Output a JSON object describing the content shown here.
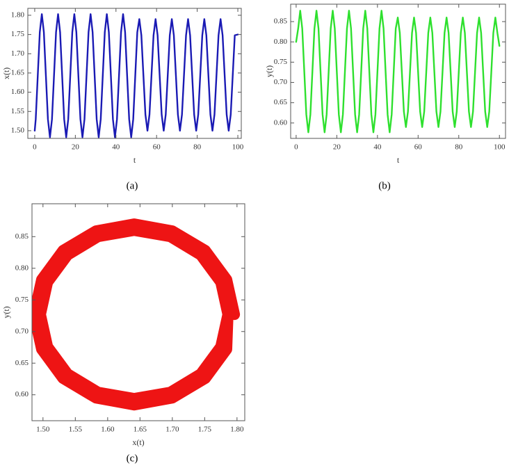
{
  "chart_data": [
    {
      "type": "line",
      "caption": "(a)",
      "x_label": "t",
      "y_label": "x(t)",
      "color": "#1a1ab4",
      "x": [
        0,
        0.5,
        1.5,
        2.5,
        3.5,
        4.5,
        5.5,
        6.5,
        7.5,
        8.5,
        9.5,
        10.5,
        11.5,
        12.5,
        13.5,
        14.5,
        15.5,
        16.5,
        17.5,
        18.5,
        19.5,
        20.5,
        21.5,
        22.5,
        23.5,
        24.5,
        25.5,
        26.5,
        27.5,
        28.5,
        29.5,
        30.5,
        31.5,
        32.5,
        33.5,
        34.5,
        35.5,
        36.5,
        37.5,
        38.5,
        39.5,
        40.5,
        41.5,
        42.5,
        43.5,
        44.5,
        45.5,
        46.5,
        47.5,
        48.5,
        49.5,
        50.5,
        51.5,
        52.5,
        53.5,
        54.5,
        55.5,
        56.5,
        57.5,
        58.5,
        59.5,
        60.5,
        61.5,
        62.5,
        63.5,
        64.5,
        65.5,
        66.5,
        67.5,
        68.5,
        69.5,
        70.5,
        71.5,
        72.5,
        73.5,
        74.5,
        75.5,
        76.5,
        77.5,
        78.5,
        79.5,
        80.5,
        81.5,
        82.5,
        83.5,
        84.5,
        85.5,
        86.5,
        87.5,
        88.5,
        89.5,
        90.5,
        91.5,
        92.5,
        93.5,
        94.5,
        95.5,
        96.5,
        97.5,
        98.5,
        100
      ],
      "values": [
        1.5,
        1.53,
        1.643,
        1.756,
        1.803,
        1.756,
        1.643,
        1.53,
        1.483,
        1.53,
        1.643,
        1.756,
        1.803,
        1.756,
        1.643,
        1.53,
        1.483,
        1.53,
        1.643,
        1.756,
        1.803,
        1.756,
        1.643,
        1.53,
        1.483,
        1.53,
        1.643,
        1.756,
        1.803,
        1.756,
        1.643,
        1.53,
        1.483,
        1.53,
        1.643,
        1.756,
        1.803,
        1.756,
        1.643,
        1.53,
        1.483,
        1.53,
        1.643,
        1.756,
        1.803,
        1.756,
        1.643,
        1.53,
        1.483,
        1.53,
        1.643,
        1.756,
        1.79,
        1.748,
        1.645,
        1.542,
        1.5,
        1.542,
        1.645,
        1.748,
        1.79,
        1.748,
        1.645,
        1.542,
        1.5,
        1.542,
        1.645,
        1.748,
        1.79,
        1.748,
        1.645,
        1.542,
        1.5,
        1.542,
        1.645,
        1.748,
        1.79,
        1.748,
        1.645,
        1.542,
        1.5,
        1.542,
        1.645,
        1.748,
        1.79,
        1.748,
        1.645,
        1.542,
        1.5,
        1.542,
        1.645,
        1.748,
        1.79,
        1.748,
        1.645,
        1.542,
        1.5,
        1.542,
        1.645,
        1.748,
        1.75
      ],
      "xlim": [
        -3.4,
        101.7
      ],
      "xticks": [
        0,
        20,
        40,
        60,
        80,
        100
      ],
      "ylim": [
        1.48,
        1.818
      ],
      "yticks": [
        {
          "value": 1.5,
          "label": "1.50"
        },
        {
          "value": 1.55,
          "label": "1.55"
        },
        {
          "value": 1.6,
          "label": "1.60"
        },
        {
          "value": 1.65,
          "label": "1.65"
        },
        {
          "value": 1.7,
          "label": "1.70"
        },
        {
          "value": 1.75,
          "label": "1.75"
        },
        {
          "value": 1.8,
          "label": "1.80"
        }
      ]
    },
    {
      "type": "line",
      "caption": "(b)",
      "x_label": "t",
      "y_label": "y(t)",
      "color": "#2ee02e",
      "x": [
        0,
        1,
        2,
        3,
        4,
        5,
        6,
        7,
        8,
        9,
        10,
        11,
        12,
        13,
        14,
        15,
        16,
        17,
        18,
        19,
        20,
        21,
        22,
        23,
        24,
        25,
        26,
        27,
        28,
        29,
        30,
        31,
        32,
        33,
        34,
        35,
        36,
        37,
        38,
        39,
        40,
        41,
        42,
        43,
        44,
        45,
        46,
        47,
        48,
        49,
        50,
        51,
        52,
        53,
        54,
        55,
        56,
        57,
        58,
        59,
        60,
        61,
        62,
        63,
        64,
        65,
        66,
        67,
        68,
        69,
        70,
        71,
        72,
        73,
        74,
        75,
        76,
        77,
        78,
        79,
        80,
        81,
        82,
        83,
        84,
        85,
        86,
        87,
        88,
        89,
        90,
        91,
        92,
        93,
        94,
        95,
        96,
        97,
        98,
        99,
        100
      ],
      "values": [
        0.8,
        0.833,
        0.877,
        0.833,
        0.727,
        0.621,
        0.577,
        0.621,
        0.727,
        0.833,
        0.877,
        0.833,
        0.727,
        0.621,
        0.577,
        0.621,
        0.727,
        0.833,
        0.877,
        0.833,
        0.727,
        0.621,
        0.577,
        0.621,
        0.727,
        0.833,
        0.877,
        0.833,
        0.727,
        0.621,
        0.577,
        0.621,
        0.727,
        0.833,
        0.877,
        0.833,
        0.727,
        0.621,
        0.577,
        0.621,
        0.727,
        0.833,
        0.877,
        0.833,
        0.727,
        0.621,
        0.577,
        0.621,
        0.727,
        0.833,
        0.86,
        0.822,
        0.725,
        0.628,
        0.59,
        0.628,
        0.725,
        0.822,
        0.86,
        0.822,
        0.725,
        0.628,
        0.59,
        0.628,
        0.725,
        0.822,
        0.86,
        0.822,
        0.725,
        0.628,
        0.59,
        0.628,
        0.725,
        0.822,
        0.86,
        0.822,
        0.725,
        0.628,
        0.59,
        0.628,
        0.725,
        0.822,
        0.86,
        0.822,
        0.725,
        0.628,
        0.59,
        0.628,
        0.725,
        0.822,
        0.86,
        0.822,
        0.725,
        0.628,
        0.59,
        0.628,
        0.725,
        0.822,
        0.86,
        0.822,
        0.79
      ],
      "xlim": [
        -2.7,
        103
      ],
      "xticks": [
        0,
        20,
        40,
        60,
        80,
        100
      ],
      "ylim": [
        0.562,
        0.893
      ],
      "yticks": [
        {
          "value": 0.6,
          "label": "0.60"
        },
        {
          "value": 0.65,
          "label": "0.65"
        },
        {
          "value": 0.7,
          "label": "0.70"
        },
        {
          "value": 0.75,
          "label": "0.75"
        },
        {
          "value": 0.8,
          "label": "0.80"
        },
        {
          "value": 0.85,
          "label": "0.85"
        }
      ]
    },
    {
      "type": "line",
      "caption": "(c)",
      "x_label": "x(t)",
      "y_label": "y(t)",
      "color": "#ee1414",
      "x": [
        1.796,
        1.784,
        1.751,
        1.7,
        1.641,
        1.582,
        1.531,
        1.498,
        1.486,
        1.498,
        1.531,
        1.582,
        1.641,
        1.7,
        1.751,
        1.784,
        1.786,
        1.775,
        1.744,
        1.697,
        1.641,
        1.585,
        1.538,
        1.507,
        1.496,
        1.507,
        1.538,
        1.585,
        1.641,
        1.697,
        1.744,
        1.775,
        1.786
      ],
      "values": [
        0.727,
        0.782,
        0.828,
        0.859,
        0.87,
        0.859,
        0.828,
        0.782,
        0.727,
        0.672,
        0.626,
        0.595,
        0.584,
        0.595,
        0.626,
        0.672,
        0.727,
        0.778,
        0.821,
        0.85,
        0.86,
        0.85,
        0.821,
        0.778,
        0.727,
        0.676,
        0.633,
        0.604,
        0.594,
        0.604,
        0.633,
        0.676,
        0.727
      ],
      "xlim": [
        1.483,
        1.812
      ],
      "xticks": [
        {
          "value": 1.5,
          "label": "1.50"
        },
        {
          "value": 1.55,
          "label": "1.55"
        },
        {
          "value": 1.6,
          "label": "1.60"
        },
        {
          "value": 1.65,
          "label": "1.65"
        },
        {
          "value": 1.7,
          "label": "1.70"
        },
        {
          "value": 1.75,
          "label": "1.75"
        },
        {
          "value": 1.8,
          "label": "1.80"
        }
      ],
      "ylim": [
        0.559,
        0.902
      ],
      "yticks": [
        {
          "value": 0.6,
          "label": "0.60"
        },
        {
          "value": 0.65,
          "label": "0.65"
        },
        {
          "value": 0.7,
          "label": "0.70"
        },
        {
          "value": 0.75,
          "label": "0.75"
        },
        {
          "value": 0.8,
          "label": "0.80"
        },
        {
          "value": 0.85,
          "label": "0.85"
        }
      ]
    }
  ]
}
